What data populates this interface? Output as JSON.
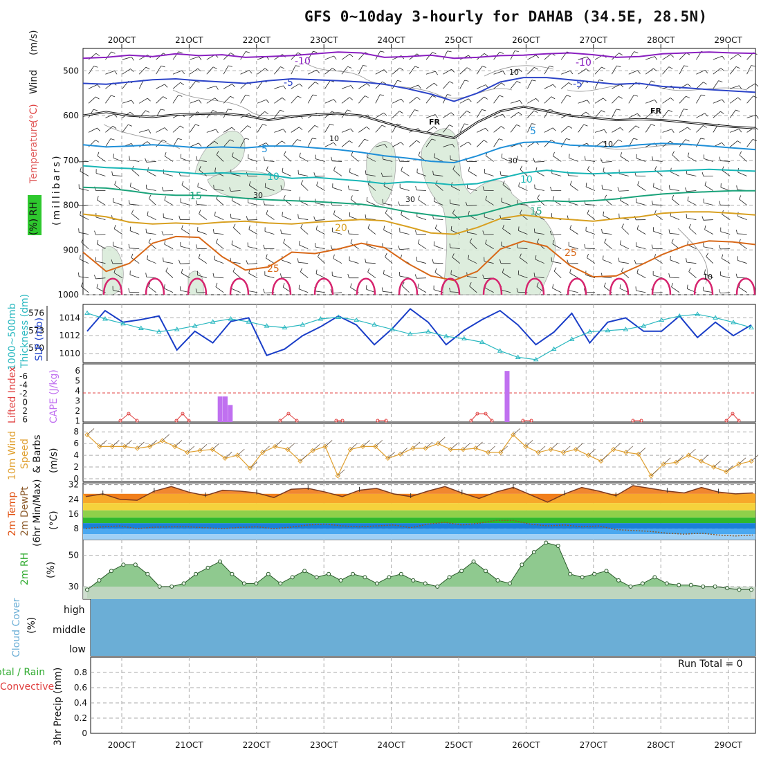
{
  "title": "GFS 0~10day 3-hourly for DAHAB (34.5E, 28.5N)",
  "run_total": "Run Total = 0",
  "chart_data": [
    {
      "type": "line",
      "panel": "upper_air",
      "categories": [
        "20OCT",
        "21OCT",
        "22OCT",
        "23OCT",
        "24OCT",
        "25OCT",
        "26OCT",
        "27OCT",
        "28OCT",
        "29OCT"
      ],
      "ylabel_parts": [
        "Temperature",
        "(°C)",
        "Wind",
        "(m/s)",
        "RH",
        "(%)",
        "(millibars)"
      ],
      "yticks": [
        "500",
        "600",
        "700",
        "800",
        "900",
        "1000"
      ],
      "ylim": [
        450,
        1000
      ],
      "contour_labels": [
        "-10",
        "-10",
        "-5",
        "-5",
        "FR",
        "FR",
        "5",
        "5",
        "10",
        "10",
        "15",
        "15",
        "20",
        "25",
        "25"
      ],
      "rh_labels": [
        "10",
        "30",
        "30",
        "30",
        "10",
        "10",
        "10"
      ],
      "isotherms": [
        {
          "label": "-10",
          "color": "#8a1fc0",
          "values": [
            472,
            470,
            465,
            468,
            462,
            466,
            464,
            470,
            468,
            466,
            462,
            458,
            460,
            470,
            468,
            465,
            472,
            470,
            466,
            465,
            462,
            460,
            464,
            470,
            468,
            462,
            460,
            458,
            460,
            461
          ]
        },
        {
          "label": "-5",
          "color": "#2c44c8",
          "values": [
            528,
            530,
            525,
            520,
            518,
            522,
            525,
            528,
            522,
            518,
            520,
            522,
            525,
            530,
            540,
            552,
            568,
            550,
            525,
            515,
            515,
            520,
            525,
            530,
            528,
            535,
            538,
            542,
            545,
            548
          ]
        },
        {
          "label": "FR",
          "color": "#111111",
          "values": [
            600,
            592,
            600,
            603,
            598,
            596,
            595,
            600,
            610,
            602,
            598,
            595,
            600,
            615,
            630,
            640,
            650,
            615,
            590,
            580,
            590,
            600,
            605,
            610,
            608,
            610,
            615,
            620,
            625,
            628
          ]
        },
        {
          "label": "5",
          "color": "#1e8fd8",
          "values": [
            665,
            670,
            668,
            665,
            668,
            672,
            670,
            672,
            668,
            668,
            672,
            676,
            682,
            690,
            695,
            702,
            705,
            690,
            672,
            660,
            658,
            666,
            668,
            670,
            665,
            662,
            664,
            668,
            672,
            676
          ]
        },
        {
          "label": "10",
          "color": "#18b6b6",
          "values": [
            712,
            716,
            718,
            722,
            726,
            730,
            728,
            730,
            732,
            740,
            738,
            742,
            746,
            752,
            748,
            750,
            755,
            752,
            740,
            728,
            722,
            728,
            730,
            728,
            726,
            724,
            722,
            720,
            722,
            724
          ]
        },
        {
          "label": "15",
          "color": "#1aa37a",
          "values": [
            760,
            762,
            768,
            775,
            778,
            778,
            780,
            785,
            788,
            790,
            792,
            795,
            798,
            805,
            815,
            822,
            828,
            822,
            808,
            795,
            790,
            792,
            790,
            786,
            780,
            775,
            772,
            770,
            768,
            768
          ]
        },
        {
          "label": "20",
          "color": "#d8a020",
          "values": [
            820,
            826,
            838,
            842,
            840,
            842,
            838,
            836,
            840,
            842,
            838,
            835,
            832,
            835,
            848,
            862,
            865,
            850,
            830,
            822,
            828,
            832,
            836,
            830,
            826,
            818,
            815,
            815,
            818,
            822
          ]
        },
        {
          "label": "25",
          "color": "#d86818",
          "values": [
            905,
            948,
            930,
            885,
            870,
            872,
            915,
            945,
            938,
            905,
            908,
            898,
            885,
            895,
            930,
            958,
            968,
            948,
            898,
            880,
            892,
            935,
            960,
            958,
            935,
            910,
            890,
            880,
            882,
            888
          ]
        }
      ]
    },
    {
      "type": "line",
      "panel": "slp_thickness",
      "ylabel_parts": [
        "1000~500mb",
        "Thickness (dm)",
        "SLP (mb)"
      ],
      "yticks_left": [
        "576",
        "573",
        "570"
      ],
      "yticks_right": [
        "1014",
        "1012",
        "1010"
      ],
      "series": [
        {
          "name": "SLP (mb)",
          "color": "#1a3ec8",
          "values": [
            1012.5,
            1014.8,
            1013.5,
            1013.8,
            1014.2,
            1010.4,
            1012.5,
            1011.2,
            1013.6,
            1014.0,
            1009.8,
            1010.5,
            1012.0,
            1013.0,
            1014.2,
            1013.2,
            1011.0,
            1012.8,
            1015.0,
            1013.5,
            1011.0,
            1012.6,
            1013.8,
            1014.8,
            1013.2,
            1011.0,
            1012.4,
            1014.5,
            1011.2,
            1013.5,
            1014.0,
            1012.5,
            1012.5,
            1014.2,
            1011.8,
            1013.5,
            1012.0,
            1013.2
          ]
        },
        {
          "name": "1000~500mb Thickness (dm)",
          "color": "#2ab8c0",
          "values": [
            576.0,
            575.0,
            574.2,
            573.4,
            572.8,
            573.2,
            573.8,
            574.5,
            575.0,
            574.5,
            573.8,
            573.5,
            574.0,
            575.0,
            575.3,
            574.8,
            574.0,
            573.2,
            572.4,
            572.8,
            572.0,
            571.6,
            571.0,
            569.5,
            568.4,
            568.0,
            569.8,
            571.5,
            572.8,
            573.0,
            573.2,
            573.8,
            574.8,
            575.5,
            575.8,
            575.2,
            574.4,
            573.5
          ]
        }
      ]
    },
    {
      "type": "bar",
      "panel": "cape_li",
      "ylabel_parts": [
        "CAPE (J/kg)",
        "Lifted Index"
      ],
      "yticks_left": [
        "6",
        "5",
        "4",
        "3",
        "2",
        "1"
      ],
      "yticks_right": [
        "-6",
        "-4",
        "-2",
        "0",
        "2",
        "6"
      ],
      "series": [
        {
          "name": "CAPE (J/kg)",
          "color": "#c070f0",
          "points": [
            {
              "day": 4.7,
              "value": 3.0
            },
            {
              "day": 5.0,
              "value": 3.0
            },
            {
              "day": 5.3,
              "value": 2.0
            },
            {
              "day": 21.7,
              "value": 6.0
            }
          ]
        },
        {
          "name": "Lifted Index",
          "color": "#e04040",
          "groups": [
            [
              1.8,
              2.2,
              2.6
            ],
            [
              4.5,
              4.8,
              5.1
            ],
            [
              9.5,
              9.9,
              10.3
            ],
            [
              14.2,
              14.6
            ],
            [
              18.7,
              19.0,
              19.4,
              19.7
            ],
            [
              12.2,
              12.5
            ],
            [
              21.2,
              21.6
            ],
            [
              26.5,
              26.9
            ],
            [
              31.0,
              31.3,
              31.6
            ]
          ]
        }
      ]
    },
    {
      "type": "line",
      "panel": "wind10m",
      "ylabel_parts": [
        "10m Wind",
        "Speed",
        "& Barbs",
        "(m/s)"
      ],
      "yticks": [
        "8",
        "6",
        "4",
        "2",
        "0"
      ],
      "series": [
        {
          "name": "10m Wind Speed (m/s)",
          "color": "#e0a030",
          "values": [
            7.5,
            5.5,
            5.5,
            5.5,
            5.2,
            5.5,
            6.5,
            5.5,
            4.5,
            4.8,
            5.0,
            3.5,
            4.0,
            1.8,
            4.5,
            5.5,
            5.0,
            3.0,
            4.8,
            5.5,
            0.5,
            5.0,
            5.5,
            5.5,
            3.5,
            4.2,
            5.2,
            5.2,
            6.0,
            5.0,
            5.0,
            5.2,
            4.5,
            4.5,
            7.5,
            5.5,
            4.5,
            5.0,
            4.5,
            5.0,
            4.0,
            3.0,
            5.0,
            4.5,
            4.2,
            0.5,
            2.5,
            2.8,
            4.0,
            3.0,
            2.0,
            1.2,
            2.5,
            3.0
          ]
        }
      ]
    },
    {
      "type": "area",
      "panel": "temp2m",
      "ylabel_parts": [
        "2m Temp",
        "2m DewPt",
        "(6hr Min/Max)",
        "(°C)"
      ],
      "yticks": [
        "32",
        "24",
        "16",
        "8"
      ],
      "series": [
        {
          "name": "2m Temp",
          "color": "#e05010",
          "values": [
            25.5,
            27.0,
            24.0,
            23.5,
            28.5,
            31.0,
            28.0,
            26.0,
            29.0,
            28.5,
            27.5,
            25.0,
            29.5,
            30.0,
            28.0,
            25.5,
            29.0,
            30.0,
            27.0,
            25.5,
            28.5,
            31.0,
            27.5,
            24.5,
            28.0,
            30.5,
            26.5,
            22.5,
            27.0,
            30.5,
            28.5,
            26.0,
            31.5,
            30.0,
            28.5,
            27.5,
            30.5,
            28.0,
            27.0,
            27.5
          ]
        },
        {
          "name": "2m DewPt",
          "color": "#8b5a2b",
          "values": [
            8.0,
            9.0,
            9.5,
            8.0,
            8.8,
            9.0,
            9.0,
            8.5,
            8.0,
            8.7,
            9.0,
            8.0,
            8.8,
            10.0,
            10.5,
            9.5,
            9.0,
            9.5,
            10.0,
            8.5,
            10.5,
            11.5,
            10.0,
            11.0,
            12.5,
            12.5,
            10.5,
            9.5,
            10.0,
            9.0,
            9.5,
            7.5,
            7.0,
            6.5,
            5.5,
            5.0,
            5.5,
            4.5,
            4.0,
            4.5
          ]
        }
      ]
    },
    {
      "type": "area",
      "panel": "rh2m",
      "ylabel_parts": [
        "2m RH",
        "(%)"
      ],
      "yticks": [
        "50",
        "30"
      ],
      "series": [
        {
          "name": "2m RH (%)",
          "color": "#2eaa2e",
          "values": [
            28,
            34,
            40,
            44,
            44,
            38,
            30,
            30,
            32,
            38,
            42,
            46,
            38,
            32,
            32,
            38,
            32,
            36,
            40,
            36,
            38,
            34,
            38,
            36,
            32,
            36,
            38,
            34,
            32,
            30,
            36,
            40,
            46,
            40,
            34,
            32,
            44,
            52,
            58,
            56,
            38,
            36,
            38,
            40,
            34,
            30,
            32,
            36,
            32,
            31,
            31,
            30,
            30,
            29,
            28,
            28
          ]
        }
      ]
    },
    {
      "type": "heatmap",
      "panel": "cloud",
      "ylabel_parts": [
        "Cloud Cover",
        "(%)"
      ],
      "levels": [
        "high",
        "middle",
        "low"
      ],
      "color": "#6baed6"
    },
    {
      "type": "bar",
      "panel": "precip",
      "ylabel_parts": [
        "Total / Rain",
        "Convective",
        "3hr Precip (mm)"
      ],
      "yticks": [
        "0.8",
        "0.6",
        "0.4",
        "0.2",
        "0"
      ],
      "ylim": [
        0,
        1.0
      ],
      "values": []
    }
  ]
}
